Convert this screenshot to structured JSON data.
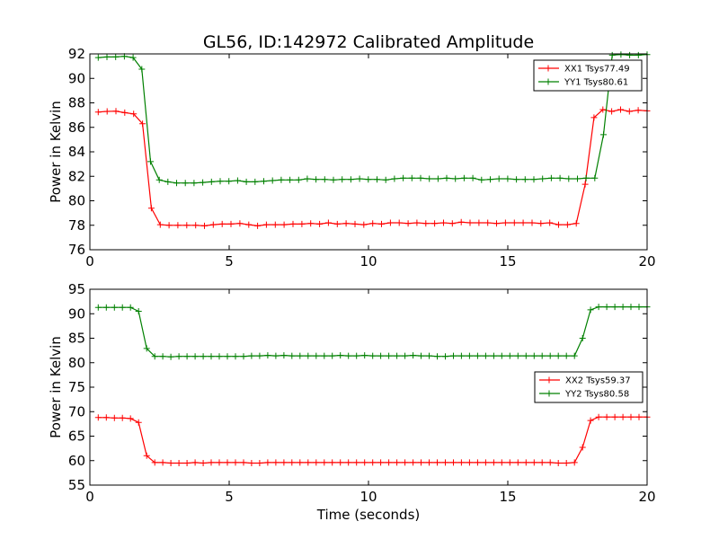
{
  "figure": {
    "title": "GL56, ID:142972 Calibrated Amplitude",
    "xlabel": "Time (seconds)"
  },
  "chart_data": [
    {
      "type": "line",
      "ylabel": "Power in Kelvin",
      "xlim": [
        0,
        20
      ],
      "ylim": [
        76,
        92
      ],
      "xticks": [
        0,
        5,
        10,
        15,
        20
      ],
      "yticks": [
        76,
        78,
        80,
        82,
        84,
        86,
        88,
        90,
        92
      ],
      "legend_position": "top-right",
      "series": [
        {
          "name": "XX1 Tsys77.49",
          "color": "#ff0000",
          "values": [
            87.25,
            87.3,
            87.32,
            87.2,
            87.1,
            86.3,
            79.4,
            78.05,
            78.0,
            78.0,
            78.0,
            78.0,
            77.95,
            78.05,
            78.1,
            78.1,
            78.15,
            78.05,
            77.95,
            78.05,
            78.05,
            78.05,
            78.1,
            78.1,
            78.15,
            78.1,
            78.2,
            78.1,
            78.15,
            78.1,
            78.05,
            78.15,
            78.1,
            78.2,
            78.2,
            78.15,
            78.2,
            78.15,
            78.15,
            78.2,
            78.15,
            78.25,
            78.2,
            78.2,
            78.2,
            78.15,
            78.2,
            78.2,
            78.2,
            78.2,
            78.15,
            78.2,
            78.05,
            78.05,
            78.15,
            81.35,
            86.8,
            87.45,
            87.3,
            87.45,
            87.3,
            87.4,
            87.35
          ]
        },
        {
          "name": "YY1 Tsys80.61",
          "color": "#008000",
          "values": [
            91.7,
            91.75,
            91.75,
            91.8,
            91.7,
            90.75,
            83.2,
            81.7,
            81.55,
            81.45,
            81.45,
            81.45,
            81.5,
            81.55,
            81.6,
            81.6,
            81.65,
            81.55,
            81.55,
            81.6,
            81.65,
            81.7,
            81.7,
            81.7,
            81.8,
            81.75,
            81.75,
            81.7,
            81.75,
            81.75,
            81.8,
            81.75,
            81.75,
            81.7,
            81.8,
            81.85,
            81.85,
            81.85,
            81.8,
            81.8,
            81.85,
            81.8,
            81.85,
            81.85,
            81.7,
            81.75,
            81.8,
            81.8,
            81.75,
            81.75,
            81.75,
            81.8,
            81.85,
            81.85,
            81.8,
            81.8,
            81.85,
            81.85,
            85.4,
            91.9,
            91.95,
            91.9,
            91.9,
            91.95
          ]
        }
      ]
    },
    {
      "type": "line",
      "ylabel": "Power in Kelvin",
      "xlim": [
        0,
        20
      ],
      "ylim": [
        55,
        95
      ],
      "xticks": [
        0,
        5,
        10,
        15,
        20
      ],
      "yticks": [
        55,
        60,
        65,
        70,
        75,
        80,
        85,
        90,
        95
      ],
      "legend_position": "center-right",
      "series": [
        {
          "name": "XX2 Tsys59.37",
          "color": "#ff0000",
          "values": [
            68.8,
            68.8,
            68.7,
            68.7,
            68.6,
            67.8,
            61.0,
            59.6,
            59.6,
            59.5,
            59.5,
            59.5,
            59.6,
            59.5,
            59.6,
            59.6,
            59.6,
            59.6,
            59.6,
            59.5,
            59.5,
            59.6,
            59.6,
            59.6,
            59.6,
            59.6,
            59.6,
            59.6,
            59.6,
            59.6,
            59.6,
            59.6,
            59.6,
            59.6,
            59.6,
            59.6,
            59.6,
            59.6,
            59.6,
            59.6,
            59.6,
            59.6,
            59.6,
            59.6,
            59.6,
            59.6,
            59.6,
            59.6,
            59.6,
            59.6,
            59.6,
            59.6,
            59.6,
            59.6,
            59.6,
            59.6,
            59.6,
            59.5,
            59.5,
            59.6,
            62.7,
            68.2,
            68.9,
            68.9,
            68.9,
            68.9,
            68.9,
            68.9,
            68.9
          ]
        },
        {
          "name": "YY2 Tsys80.58",
          "color": "#008000",
          "values": [
            91.3,
            91.3,
            91.3,
            91.3,
            91.3,
            90.5,
            82.9,
            81.3,
            81.3,
            81.2,
            81.3,
            81.3,
            81.3,
            81.3,
            81.3,
            81.3,
            81.3,
            81.3,
            81.3,
            81.4,
            81.4,
            81.5,
            81.4,
            81.5,
            81.4,
            81.4,
            81.4,
            81.4,
            81.4,
            81.4,
            81.5,
            81.4,
            81.4,
            81.5,
            81.4,
            81.4,
            81.4,
            81.4,
            81.4,
            81.5,
            81.4,
            81.4,
            81.3,
            81.3,
            81.4,
            81.4,
            81.4,
            81.4,
            81.4,
            81.4,
            81.4,
            81.4,
            81.4,
            81.4,
            81.4,
            81.4,
            81.4,
            81.4,
            81.4,
            81.4,
            85.0,
            90.8,
            91.4,
            91.4,
            91.4,
            91.4,
            91.4,
            91.4,
            91.4
          ]
        }
      ]
    }
  ]
}
